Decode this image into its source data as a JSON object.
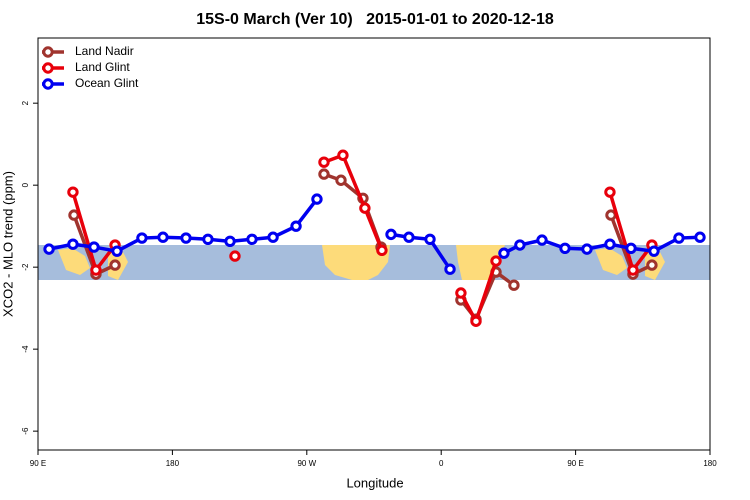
{
  "chart_data": {
    "type": "line",
    "title": "15S-0 March (Ver 10)   2015-01-01 to 2020-12-18",
    "x_label": "Longitude",
    "y_label": "XCO2 - MLO trend (ppm)",
    "xlim": [
      90,
      540
    ],
    "ylim": [
      -6.46,
      3.59
    ],
    "xticks": [
      {
        "value": 90,
        "label": "90 E"
      },
      180,
      {
        "value": 270,
        "label": "90 W"
      },
      {
        "value": 360,
        "label": "0"
      },
      {
        "value": 450,
        "label": "90 E"
      },
      {
        "value": 540,
        "label": "180"
      }
    ],
    "yticks": [
      2,
      0,
      -2,
      -4,
      -6
    ],
    "legend": "top-left",
    "series": [
      {
        "name": "Land Nadir",
        "color": "#a0342e",
        "x": [
          114.1,
          128.8,
          141.6,
          null,
          281.5,
          292.9,
          307.6,
          319.7,
          null,
          373.2,
          383.3,
          396.7,
          408.7,
          null,
          473.7,
          488.4,
          501.1
        ],
        "values": [
          -0.73,
          -2.17,
          -1.95,
          null,
          0.27,
          0.12,
          -0.32,
          -1.51,
          null,
          -2.8,
          -3.27,
          -2.12,
          -2.44,
          null,
          -0.73,
          -2.17,
          -1.95
        ]
      },
      {
        "name": "Land Glint",
        "color": "#e8000b",
        "x": [
          113.4,
          128.8,
          141.6,
          null,
          221.9,
          null,
          281.5,
          294.2,
          308.9,
          320.3,
          null,
          373.2,
          383.3,
          396.7,
          null,
          473.0,
          488.4,
          501.1
        ],
        "values": [
          -0.17,
          -2.07,
          -1.46,
          null,
          -1.73,
          null,
          0.56,
          0.73,
          -0.56,
          -1.59,
          null,
          -2.63,
          -3.32,
          -1.85,
          null,
          -0.17,
          -2.07,
          -1.46
        ]
      },
      {
        "name": "Ocean Glint",
        "color": "#0000f0",
        "x": [
          97.4,
          113.4,
          127.5,
          142.9,
          159.6,
          173.7,
          189.1,
          203.8,
          218.6,
          233.3,
          247.4,
          262.8,
          276.8,
          null,
          326.4,
          338.4,
          352.5,
          365.9,
          null,
          402.0,
          412.7,
          427.5,
          442.9,
          457.6,
          473.0,
          487.1,
          502.5,
          519.2,
          533.3
        ],
        "values": [
          -1.56,
          -1.44,
          -1.51,
          -1.61,
          -1.29,
          -1.27,
          -1.29,
          -1.32,
          -1.37,
          -1.32,
          -1.27,
          -1.0,
          -0.34,
          null,
          -1.2,
          -1.27,
          -1.32,
          -2.05,
          null,
          -1.66,
          -1.46,
          -1.34,
          -1.54,
          -1.56,
          -1.44,
          -1.54,
          -1.61,
          -1.29,
          -1.27
        ]
      }
    ]
  }
}
